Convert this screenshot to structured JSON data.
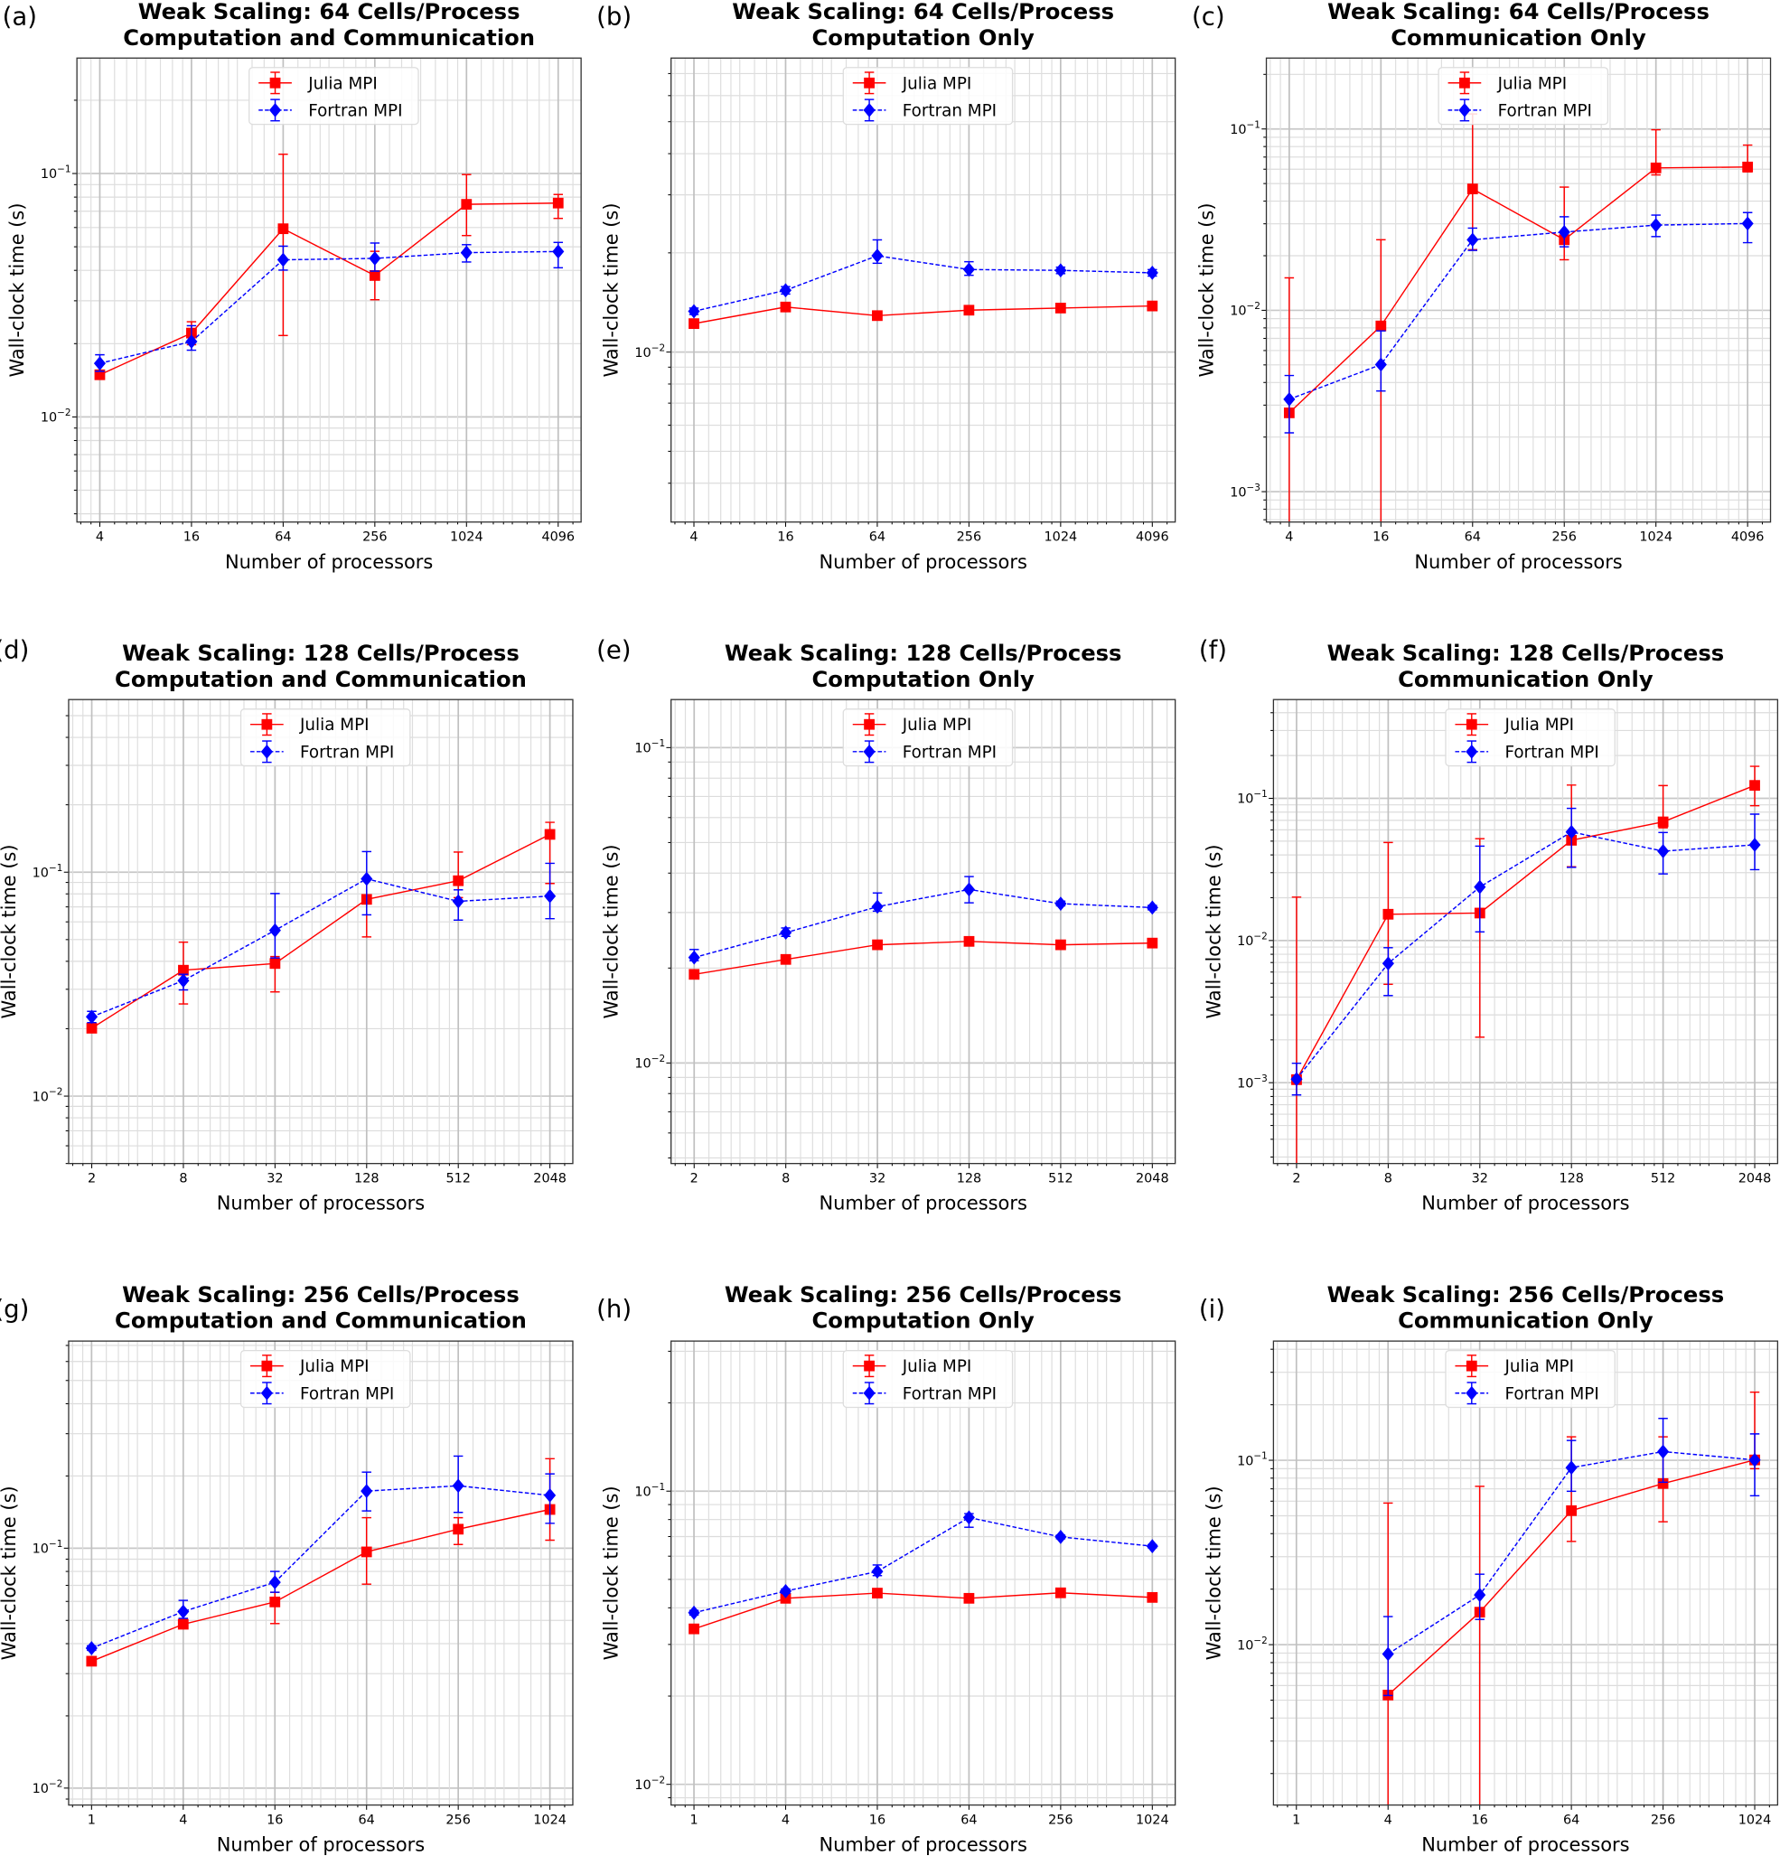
{
  "figure": {
    "colors": {
      "julia": "#ff0000",
      "fortran": "#0000ff",
      "grid": "#b0b0b0"
    }
  },
  "chart_data": [
    {
      "panel": "(a)",
      "type": "line",
      "title": [
        "Weak Scaling: 64 Cells/Process",
        "Computation and Communication"
      ],
      "xlabel": "Number of processors",
      "ylabel": "Wall-clock time (s)",
      "xscale": "log2",
      "yscale": "log",
      "xticks": [
        4,
        16,
        64,
        256,
        1024,
        4096
      ],
      "yticks": [
        0.01,
        0.1
      ],
      "xlim": [
        2.83,
        5793
      ],
      "ylim": [
        0.0037,
        0.298
      ],
      "grid": true,
      "legend": "upper center",
      "x": [
        4,
        16,
        64,
        256,
        1024,
        4096
      ],
      "series": [
        {
          "name": "Julia MPI",
          "color": "#ff0000",
          "marker": "square",
          "linestyle": "solid",
          "y": [
            0.0149,
            0.0221,
            0.0593,
            0.0381,
            0.0747,
            0.0756
          ],
          "y_low": [
            0.0144,
            0.0198,
            0.0216,
            0.0303,
            0.0556,
            0.0654
          ],
          "y_high": [
            0.0155,
            0.0246,
            0.12,
            0.0479,
            0.099,
            0.082
          ]
        },
        {
          "name": "Fortran MPI",
          "color": "#0000ff",
          "marker": "diamond",
          "linestyle": "dashed",
          "y": [
            0.0166,
            0.0204,
            0.0442,
            0.0448,
            0.0473,
            0.0478
          ],
          "y_low": [
            0.0154,
            0.0188,
            0.0401,
            0.0397,
            0.0433,
            0.041
          ],
          "y_high": [
            0.018,
            0.0237,
            0.0503,
            0.0518,
            0.051,
            0.0521
          ]
        }
      ]
    },
    {
      "panel": "(b)",
      "type": "line",
      "title": [
        "Weak Scaling: 64 Cells/Process",
        "Computation Only"
      ],
      "xlabel": "Number of processors",
      "ylabel": "Wall-clock time (s)",
      "xscale": "log2",
      "yscale": "log",
      "xticks": [
        4,
        16,
        64,
        256,
        1024,
        4096
      ],
      "yticks": [
        0.01
      ],
      "xlim": [
        2.83,
        5793
      ],
      "ylim": [
        0.00305,
        0.078
      ],
      "grid": true,
      "legend": "upper center",
      "x": [
        4,
        16,
        64,
        256,
        1024,
        4096
      ],
      "series": [
        {
          "name": "Julia MPI",
          "color": "#ff0000",
          "marker": "square",
          "linestyle": "solid",
          "y": [
            0.0122,
            0.0137,
            0.0129,
            0.0134,
            0.0136,
            0.0138
          ],
          "y_low": [
            0.0121,
            0.0136,
            0.0128,
            0.0133,
            0.0135,
            0.0137
          ],
          "y_high": [
            0.0123,
            0.0138,
            0.013,
            0.0135,
            0.0137,
            0.0139
          ]
        },
        {
          "name": "Fortran MPI",
          "color": "#0000ff",
          "marker": "diamond",
          "linestyle": "dashed",
          "y": [
            0.0133,
            0.0154,
            0.0196,
            0.0178,
            0.0177,
            0.0174
          ],
          "y_low": [
            0.013,
            0.015,
            0.0186,
            0.0171,
            0.0173,
            0.017
          ],
          "y_high": [
            0.0136,
            0.0158,
            0.0219,
            0.0188,
            0.0181,
            0.0178
          ]
        }
      ]
    },
    {
      "panel": "(c)",
      "type": "line",
      "title": [
        "Weak Scaling: 64 Cells/Process",
        "Communication Only"
      ],
      "xlabel": "Number of processors",
      "ylabel": "Wall-clock time (s)",
      "xscale": "log2",
      "yscale": "log",
      "xticks": [
        4,
        16,
        64,
        256,
        1024,
        4096
      ],
      "yticks": [
        0.001,
        0.01,
        0.1
      ],
      "xlim": [
        2.83,
        5793
      ],
      "ylim": [
        0.00068,
        0.246
      ],
      "grid": true,
      "legend": "upper center",
      "x": [
        4,
        16,
        64,
        256,
        1024,
        4096
      ],
      "series": [
        {
          "name": "Julia MPI",
          "color": "#ff0000",
          "marker": "square",
          "linestyle": "solid",
          "y": [
            0.00272,
            0.0082,
            0.0467,
            0.0245,
            0.061,
            0.0617
          ],
          "y_low": [
            0.0003,
            0.0003,
            0.0216,
            0.019,
            0.0558,
            0.058
          ],
          "y_high": [
            0.0151,
            0.0245,
            0.121,
            0.0478,
            0.099,
            0.0815
          ]
        },
        {
          "name": "Fortran MPI",
          "color": "#0000ff",
          "marker": "diamond",
          "linestyle": "dashed",
          "y": [
            0.00323,
            0.00502,
            0.0245,
            0.027,
            0.0295,
            0.0301
          ],
          "y_low": [
            0.00211,
            0.00359,
            0.0214,
            0.0224,
            0.0255,
            0.0236
          ],
          "y_high": [
            0.00437,
            0.0077,
            0.0284,
            0.0328,
            0.0335,
            0.0346
          ]
        }
      ]
    },
    {
      "panel": "(d)",
      "type": "line",
      "title": [
        "Weak Scaling: 128 Cells/Process",
        "Computation and Communication"
      ],
      "xlabel": "Number of processors",
      "ylabel": "Wall-clock time (s)",
      "xscale": "log2",
      "yscale": "log",
      "xticks": [
        2,
        8,
        32,
        128,
        512,
        2048
      ],
      "yticks": [
        0.01,
        0.1
      ],
      "xlim": [
        1.41,
        2896
      ],
      "ylim": [
        0.005,
        0.59
      ],
      "grid": true,
      "legend": "upper center",
      "x": [
        2,
        8,
        32,
        128,
        512,
        2048
      ],
      "series": [
        {
          "name": "Julia MPI",
          "color": "#ff0000",
          "marker": "square",
          "linestyle": "solid",
          "y": [
            0.0201,
            0.0365,
            0.0391,
            0.0756,
            0.0916,
            0.1475
          ],
          "y_low": [
            0.0195,
            0.0258,
            0.0292,
            0.0514,
            0.077,
            0.089
          ],
          "y_high": [
            0.0207,
            0.0487,
            0.042,
            0.094,
            0.123,
            0.167
          ]
        },
        {
          "name": "Fortran MPI",
          "color": "#0000ff",
          "marker": "diamond",
          "linestyle": "dashed",
          "y": [
            0.0226,
            0.0328,
            0.055,
            0.0934,
            0.0741,
            0.0782
          ],
          "y_low": [
            0.0213,
            0.0298,
            0.0414,
            0.0645,
            0.0611,
            0.062
          ],
          "y_high": [
            0.0239,
            0.035,
            0.0803,
            0.1236,
            0.0834,
            0.1095
          ]
        }
      ]
    },
    {
      "panel": "(e)",
      "type": "line",
      "title": [
        "Weak Scaling: 128 Cells/Process",
        "Computation Only"
      ],
      "xlabel": "Number of processors",
      "ylabel": "Wall-clock time (s)",
      "xscale": "log2",
      "yscale": "log",
      "xticks": [
        2,
        8,
        32,
        128,
        512,
        2048
      ],
      "yticks": [
        0.01,
        0.1
      ],
      "xlim": [
        1.41,
        2896
      ],
      "ylim": [
        0.0048,
        0.142
      ],
      "grid": true,
      "legend": "upper center",
      "x": [
        2,
        8,
        32,
        128,
        512,
        2048
      ],
      "series": [
        {
          "name": "Julia MPI",
          "color": "#ff0000",
          "marker": "square",
          "linestyle": "solid",
          "y": [
            0.0191,
            0.0213,
            0.0237,
            0.0243,
            0.0237,
            0.024
          ],
          "y_low": [
            0.019,
            0.0212,
            0.0236,
            0.0242,
            0.0236,
            0.0239
          ],
          "y_high": [
            0.0192,
            0.0214,
            0.0238,
            0.0244,
            0.0238,
            0.0241
          ]
        },
        {
          "name": "Fortran MPI",
          "color": "#0000ff",
          "marker": "diamond",
          "linestyle": "dashed",
          "y": [
            0.0216,
            0.0259,
            0.0313,
            0.0355,
            0.032,
            0.0311
          ],
          "y_low": [
            0.0211,
            0.0252,
            0.0303,
            0.0322,
            0.0315,
            0.0306
          ],
          "y_high": [
            0.0229,
            0.0268,
            0.0346,
            0.039,
            0.0326,
            0.0316
          ]
        }
      ]
    },
    {
      "panel": "(f)",
      "type": "line",
      "title": [
        "Weak Scaling: 128 Cells/Process",
        "Communication Only"
      ],
      "xlabel": "Number of processors",
      "ylabel": "Wall-clock time (s)",
      "xscale": "log2",
      "yscale": "log",
      "xticks": [
        2,
        8,
        32,
        128,
        512,
        2048
      ],
      "yticks": [
        0.001,
        0.01,
        0.1
      ],
      "xlim": [
        1.41,
        2896
      ],
      "ylim": [
        0.00027,
        0.495
      ],
      "grid": true,
      "legend": "upper center",
      "x": [
        2,
        8,
        32,
        128,
        512,
        2048
      ],
      "series": [
        {
          "name": "Julia MPI",
          "color": "#ff0000",
          "marker": "square",
          "linestyle": "solid",
          "y": [
            0.00105,
            0.0153,
            0.0156,
            0.0507,
            0.0683,
            0.1233
          ],
          "y_low": [
            0.0001,
            0.00492,
            0.00209,
            0.033,
            0.062,
            0.0887
          ],
          "y_high": [
            0.0202,
            0.0489,
            0.052,
            0.124,
            0.123,
            0.168
          ]
        },
        {
          "name": "Fortran MPI",
          "color": "#0000ff",
          "marker": "diamond",
          "linestyle": "dashed",
          "y": [
            0.00106,
            0.0069,
            0.0238,
            0.058,
            0.0425,
            0.0471
          ],
          "y_low": [
            0.00082,
            0.0041,
            0.0115,
            0.0327,
            0.0294,
            0.0315
          ],
          "y_high": [
            0.00137,
            0.0089,
            0.0461,
            0.085,
            0.0575,
            0.0774
          ]
        }
      ]
    },
    {
      "panel": "(g)",
      "type": "line",
      "title": [
        "Weak Scaling: 256 Cells/Process",
        "Computation and Communication"
      ],
      "xlabel": "Number of processors",
      "ylabel": "Wall-clock time (s)",
      "xscale": "log2",
      "yscale": "log",
      "xticks": [
        1,
        4,
        16,
        64,
        256,
        1024
      ],
      "yticks": [
        0.01,
        0.1
      ],
      "xlim": [
        0.707,
        1448
      ],
      "ylim": [
        0.0085,
        0.73
      ],
      "grid": true,
      "legend": "upper center",
      "x": [
        1,
        4,
        16,
        64,
        256,
        1024
      ],
      "series": [
        {
          "name": "Julia MPI",
          "color": "#ff0000",
          "marker": "square",
          "linestyle": "solid",
          "y": [
            0.0338,
            0.0482,
            0.0597,
            0.0965,
            0.12,
            0.145
          ],
          "y_low": [
            0.0328,
            0.0465,
            0.0485,
            0.0708,
            0.1036,
            0.108
          ],
          "y_high": [
            0.0348,
            0.0505,
            0.0655,
            0.134,
            0.134,
            0.236
          ]
        },
        {
          "name": "Fortran MPI",
          "color": "#0000ff",
          "marker": "diamond",
          "linestyle": "dashed",
          "y": [
            0.0383,
            0.0544,
            0.0721,
            0.173,
            0.182,
            0.166
          ],
          "y_low": [
            0.0375,
            0.051,
            0.0655,
            0.143,
            0.141,
            0.127
          ],
          "y_high": [
            0.0392,
            0.0606,
            0.08,
            0.2075,
            0.242,
            0.204
          ]
        }
      ]
    },
    {
      "panel": "(h)",
      "type": "line",
      "title": [
        "Weak Scaling: 256 Cells/Process",
        "Computation Only"
      ],
      "xlabel": "Number of processors",
      "ylabel": "Wall-clock time (s)",
      "xscale": "log2",
      "yscale": "log",
      "xticks": [
        1,
        4,
        16,
        64,
        256,
        1024
      ],
      "yticks": [
        0.01,
        0.1
      ],
      "xlim": [
        0.707,
        1448
      ],
      "ylim": [
        0.0085,
        0.325
      ],
      "grid": true,
      "legend": "upper center",
      "x": [
        1,
        4,
        16,
        64,
        256,
        1024
      ],
      "series": [
        {
          "name": "Julia MPI",
          "color": "#ff0000",
          "marker": "square",
          "linestyle": "solid",
          "y": [
            0.0339,
            0.0431,
            0.0449,
            0.0431,
            0.045,
            0.0434
          ],
          "y_low": [
            0.0337,
            0.0429,
            0.0447,
            0.0429,
            0.0448,
            0.0432
          ],
          "y_high": [
            0.0341,
            0.0433,
            0.0451,
            0.0433,
            0.0452,
            0.0436
          ]
        },
        {
          "name": "Fortran MPI",
          "color": "#0000ff",
          "marker": "diamond",
          "linestyle": "dashed",
          "y": [
            0.0385,
            0.0456,
            0.0532,
            0.0813,
            0.0698,
            0.0649
          ],
          "y_low": [
            0.0378,
            0.0448,
            0.0515,
            0.0753,
            0.0688,
            0.0641
          ],
          "y_high": [
            0.0392,
            0.0464,
            0.056,
            0.0838,
            0.0708,
            0.0657
          ]
        }
      ]
    },
    {
      "panel": "(i)",
      "type": "line",
      "title": [
        "Weak Scaling: 256 Cells/Process",
        "Communication Only"
      ],
      "xlabel": "Number of processors",
      "ylabel": "Wall-clock time (s)",
      "xscale": "log2",
      "yscale": "log",
      "xticks": [
        1,
        4,
        16,
        64,
        256,
        1024
      ],
      "yticks": [
        0.01,
        0.1
      ],
      "xlim": [
        0.707,
        1448
      ],
      "ylim": [
        0.00135,
        0.443
      ],
      "grid": true,
      "legend": "upper center",
      "x": [
        4,
        16,
        64,
        256,
        1024
      ],
      "series": [
        {
          "name": "Julia MPI",
          "color": "#ff0000",
          "marker": "square",
          "linestyle": "solid",
          "y": [
            0.00533,
            0.015,
            0.0533,
            0.0748,
            0.1004
          ],
          "y_low": [
            0.0005,
            0.0005,
            0.0363,
            0.0464,
            0.09
          ],
          "y_high": [
            0.0586,
            0.0722,
            0.134,
            0.134,
            0.234
          ]
        },
        {
          "name": "Fortran MPI",
          "color": "#0000ff",
          "marker": "diamond",
          "linestyle": "dashed",
          "y": [
            0.0089,
            0.0186,
            0.0912,
            0.1114,
            0.1004
          ],
          "y_low": [
            0.0053,
            0.0137,
            0.0679,
            0.076,
            0.0642
          ],
          "y_high": [
            0.0142,
            0.0241,
            0.128,
            0.1686,
            0.139
          ]
        }
      ]
    }
  ]
}
